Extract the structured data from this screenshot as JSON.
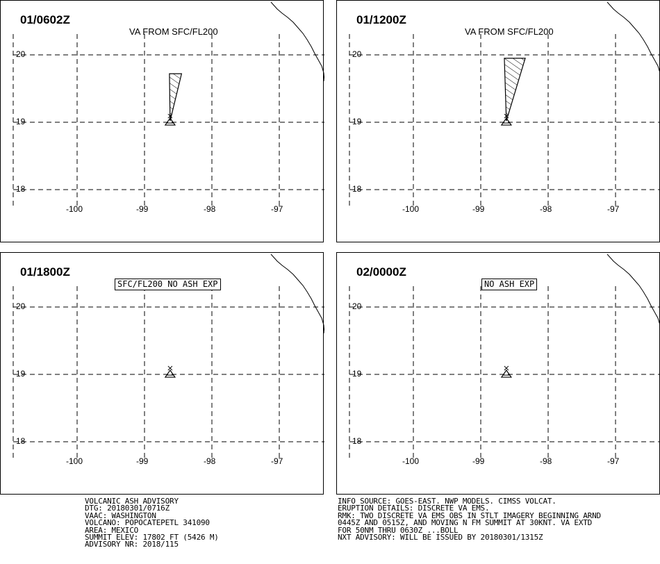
{
  "panels": [
    {
      "time": "01/0602Z",
      "label": "VA FROM SFC/FL200",
      "label_boxed": false
    },
    {
      "time": "01/1200Z",
      "label": "VA FROM SFC/FL200",
      "label_boxed": false
    },
    {
      "time": "01/1800Z",
      "label": "SFC/FL200 NO ASH EXP",
      "label_boxed": true
    },
    {
      "time": "02/0000Z",
      "label": "NO ASH EXP",
      "label_boxed": true
    }
  ],
  "lat_ticks": [
    "20",
    "19",
    "18"
  ],
  "lon_ticks": [
    "-100",
    "-99",
    "-98",
    "-97"
  ],
  "map_extent": {
    "lon": [
      -100.9,
      -96.45
    ],
    "lat": [
      17.7,
      20.8
    ]
  },
  "volcano": {
    "lon": -98.62,
    "lat": 19.02
  },
  "ash_polygons": [
    {
      "panel": 0,
      "points": [
        [
          -98.62,
          19.02
        ],
        [
          -98.45,
          19.72
        ],
        [
          -98.63,
          19.72
        ]
      ]
    },
    {
      "panel": 1,
      "points": [
        [
          -98.62,
          19.02
        ],
        [
          -98.34,
          19.95
        ],
        [
          -98.65,
          19.95
        ]
      ]
    }
  ],
  "footer_left": [
    "VOLCANIC ASH ADVISORY",
    "DTG: 20180301/0716Z",
    "VAAC: WASHINGTON",
    "VOLCANO: POPOCATEPETL 341090",
    "AREA: MEXICO",
    "SUMMIT ELEV: 17802 FT (5426 M)",
    "ADVISORY NR: 2018/115"
  ],
  "footer_right": [
    "INFO SOURCE: GOES-EAST. NWP MODELS. CIMSS VOLCAT.",
    "ERUPTION DETAILS: DISCRETE VA EMS.",
    "RMK: TWO DISCRETE VA EMS OBS IN STLT IMAGERY BEGINNING ARND",
    "0445Z AND 0515Z, AND MOVING N FM SUMMIT AT 30KNT. VA EXTD",
    "FOR 50NM THRU 0630Z ...BOLL",
    "NXT ADVISORY: WILL BE ISSUED BY 20180301/1315Z"
  ],
  "colors": {
    "line": "#000000",
    "background": "#ffffff"
  }
}
